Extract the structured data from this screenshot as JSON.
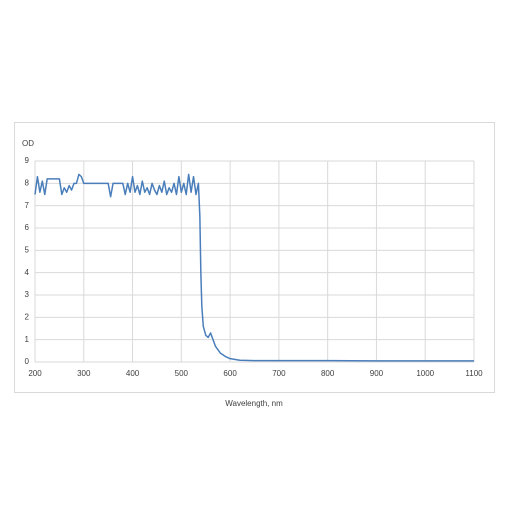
{
  "chart_data": {
    "type": "line",
    "x_label": "Wavelength, nm",
    "y_label": "OD",
    "x": [
      200,
      205,
      210,
      215,
      220,
      225,
      230,
      235,
      240,
      245,
      250,
      255,
      260,
      265,
      270,
      275,
      280,
      285,
      290,
      295,
      300,
      350,
      355,
      360,
      380,
      385,
      390,
      395,
      400,
      405,
      410,
      415,
      420,
      425,
      430,
      435,
      440,
      445,
      450,
      455,
      460,
      465,
      470,
      475,
      480,
      485,
      490,
      495,
      500,
      505,
      510,
      515,
      520,
      525,
      530,
      535,
      538,
      540,
      542,
      545,
      550,
      555,
      560,
      565,
      570,
      580,
      590,
      600,
      620,
      650,
      700,
      800,
      900,
      1000,
      1100
    ],
    "series": [
      {
        "name": "OD",
        "color": "#4a7ebb",
        "values": [
          7.5,
          8.3,
          7.6,
          8.1,
          7.5,
          8.2,
          8.2,
          8.2,
          8.2,
          8.2,
          8.2,
          7.5,
          7.8,
          7.6,
          7.9,
          7.7,
          8.0,
          8.0,
          8.4,
          8.3,
          8.0,
          8.0,
          7.4,
          8.0,
          8.0,
          7.5,
          8.0,
          7.6,
          8.3,
          7.6,
          7.9,
          7.5,
          8.1,
          7.6,
          7.8,
          7.5,
          8.0,
          7.7,
          7.5,
          7.9,
          7.6,
          8.1,
          7.5,
          7.8,
          7.6,
          8.0,
          7.5,
          8.3,
          7.6,
          8.0,
          7.5,
          8.4,
          7.6,
          8.3,
          7.5,
          8.0,
          6.5,
          4.0,
          2.5,
          1.6,
          1.2,
          1.1,
          1.3,
          1.0,
          0.7,
          0.4,
          0.25,
          0.15,
          0.08,
          0.06,
          0.06,
          0.06,
          0.05,
          0.05,
          0.05
        ]
      }
    ],
    "xlim": [
      200,
      1100
    ],
    "xticks": [
      200,
      300,
      400,
      500,
      600,
      700,
      800,
      900,
      1000,
      1100
    ],
    "ylim": [
      0,
      9
    ],
    "yticks": [
      0,
      1,
      2,
      3,
      4,
      5,
      6,
      7,
      8,
      9
    ],
    "grid": true
  }
}
